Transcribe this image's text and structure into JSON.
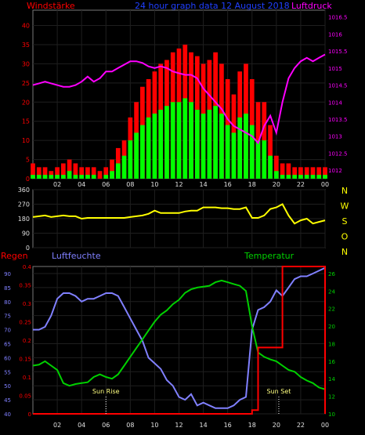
{
  "header": {
    "wind_label": "Windstärke",
    "title": "24 hour graph data  12 August 2018",
    "pressure_label": "Luftdruck"
  },
  "compass_label": "N W S O N",
  "bottom_labels": {
    "rain": "Regen",
    "humidity": "Luftfeuchte",
    "temperature": "Temperatur"
  },
  "colors": {
    "wind_gust": "#ff0000",
    "wind_avg": "#00ff00",
    "pressure": "#ff00ff",
    "direction": "#ffff00",
    "rain": "#ff0000",
    "humidity": "#8080ff",
    "temperature": "#00d000",
    "axis_left": "#ff0000",
    "axis_right": "#ff00ff",
    "grid": "#1f1f1f"
  },
  "chart_data": [
    {
      "type": "bar",
      "panel": "wind",
      "x": [
        0,
        0.5,
        1,
        1.5,
        2,
        2.5,
        3,
        3.5,
        4,
        4.5,
        5,
        5.5,
        6,
        6.5,
        7,
        7.5,
        8,
        8.5,
        9,
        9.5,
        10,
        10.5,
        11,
        11.5,
        12,
        12.5,
        13,
        13.5,
        14,
        14.5,
        15,
        15.5,
        16,
        16.5,
        17,
        17.5,
        18,
        18.5,
        19,
        19.5,
        20,
        20.5,
        21,
        21.5,
        22,
        22.5,
        23,
        23.5,
        24
      ],
      "xticklabels": [
        "02",
        "04",
        "06",
        "08",
        "10",
        "12",
        "14",
        "16",
        "18",
        "20",
        "22",
        "00"
      ],
      "yticks": [
        0,
        5,
        10,
        15,
        20,
        25,
        30,
        35,
        40
      ],
      "ylim": [
        0,
        44
      ],
      "series": [
        {
          "name": "Windstärke",
          "values": [
            4,
            3,
            3,
            2,
            3,
            4,
            5,
            4,
            3,
            3,
            3,
            2,
            3,
            5,
            8,
            10,
            16,
            20,
            24,
            26,
            28,
            30,
            31,
            33,
            34,
            35,
            33,
            32,
            30,
            31,
            33,
            30,
            26,
            22,
            28,
            30,
            26,
            20,
            20,
            14,
            6,
            4,
            4,
            3,
            3,
            3,
            3,
            3,
            3
          ]
        },
        {
          "values": [
            1,
            1,
            1,
            1,
            1,
            1,
            2,
            1,
            1,
            1,
            1,
            0,
            1,
            2,
            4,
            6,
            10,
            12,
            14,
            16,
            17,
            18,
            19,
            20,
            20,
            21,
            20,
            18,
            17,
            18,
            19,
            17,
            14,
            12,
            16,
            17,
            14,
            10,
            10,
            6,
            2,
            1,
            1,
            1,
            1,
            1,
            1,
            1,
            1
          ]
        },
        {
          "name": "Luftdruck",
          "values": [
            1014.5,
            1014.55,
            1014.6,
            1014.55,
            1014.5,
            1014.45,
            1014.45,
            1014.5,
            1014.6,
            1014.75,
            1014.6,
            1014.7,
            1014.9,
            1014.9,
            1015,
            1015.1,
            1015.2,
            1015.2,
            1015.15,
            1015.05,
            1015.0,
            1015.05,
            1015.0,
            1014.9,
            1014.85,
            1014.8,
            1014.8,
            1014.7,
            1014.4,
            1014.2,
            1014.0,
            1013.8,
            1013.5,
            1013.3,
            1013.2,
            1013.1,
            1013.0,
            1012.8,
            1013.3,
            1013.6,
            1013.1,
            1014.0,
            1014.7,
            1015.0,
            1015.2,
            1015.3,
            1015.2,
            1015.3,
            1015.4
          ]
        }
      ],
      "pressure_ticks": [
        1012,
        1012.5,
        1013,
        1013.5,
        1014,
        1014.5,
        1015,
        1015.5,
        1016,
        1016.5
      ],
      "pressure_ylim": [
        1011.75,
        1016.7
      ]
    },
    {
      "type": "line",
      "panel": "direction",
      "x": [
        0,
        0.5,
        1,
        1.5,
        2,
        2.5,
        3,
        3.5,
        4,
        4.5,
        5,
        5.5,
        6,
        6.5,
        7,
        7.5,
        8,
        8.5,
        9,
        9.5,
        10,
        10.5,
        11,
        11.5,
        12,
        12.5,
        13,
        13.5,
        14,
        14.5,
        15,
        15.5,
        16,
        16.5,
        17,
        17.5,
        18,
        18.5,
        19,
        19.5,
        20,
        20.5,
        21,
        21.5,
        22,
        22.5,
        23,
        23.5,
        24
      ],
      "yticks": [
        0,
        90,
        180,
        270,
        360
      ],
      "ylim": [
        0,
        360
      ],
      "series": [
        {
          "values": [
            190,
            195,
            200,
            190,
            195,
            200,
            195,
            195,
            180,
            185,
            185,
            185,
            185,
            185,
            185,
            185,
            190,
            195,
            200,
            210,
            230,
            215,
            215,
            215,
            215,
            225,
            230,
            230,
            250,
            250,
            250,
            245,
            245,
            240,
            240,
            250,
            185,
            185,
            200,
            240,
            250,
            270,
            200,
            150,
            170,
            180,
            150,
            160,
            170
          ]
        }
      ]
    },
    {
      "type": "line",
      "panel": "climate",
      "x": [
        0,
        0.5,
        1,
        1.5,
        2,
        2.5,
        3,
        3.5,
        4,
        4.5,
        5,
        5.5,
        6,
        6.5,
        7,
        7.5,
        8,
        8.5,
        9,
        9.5,
        10,
        10.5,
        11,
        11.5,
        12,
        12.5,
        13,
        13.5,
        14,
        14.5,
        15,
        15.5,
        16,
        16.5,
        17,
        17.5,
        18,
        18.5,
        19,
        19.5,
        20,
        20.5,
        21,
        21.5,
        22,
        22.5,
        23,
        23.5,
        24
      ],
      "humidity_ticks": [
        40,
        45,
        50,
        55,
        60,
        65,
        70,
        75,
        80,
        85,
        90
      ],
      "humidity_ylim": [
        40,
        92.5
      ],
      "rain_ticks": [
        0,
        0.05,
        0.1,
        0.15,
        0.2,
        0.25,
        0.3,
        0.35,
        0.4
      ],
      "rain_ylim": [
        0,
        0.4
      ],
      "temperature_ticks": [
        10,
        12,
        14,
        16,
        18,
        20,
        22,
        24,
        26
      ],
      "temperature_ylim": [
        10,
        26.8
      ],
      "series": [
        {
          "name": "Luftfeuchte",
          "values": [
            70,
            70,
            71,
            75,
            81,
            83,
            83,
            82,
            80,
            81,
            81,
            82,
            83,
            83,
            82,
            78,
            74,
            70,
            66,
            60,
            58,
            56,
            52,
            50,
            46,
            45,
            47,
            43,
            44,
            43,
            42,
            42,
            42,
            43,
            45,
            46,
            70,
            77,
            78,
            80,
            84,
            82,
            85,
            88,
            89,
            89,
            90,
            91,
            92
          ]
        },
        {
          "name": "Regen",
          "values": [
            0,
            0,
            0,
            0,
            0,
            0,
            0,
            0,
            0,
            0,
            0,
            0,
            0,
            0,
            0,
            0,
            0,
            0,
            0,
            0,
            0,
            0,
            0,
            0,
            0,
            0,
            0,
            0,
            0,
            0,
            0,
            0,
            0,
            0,
            0,
            0,
            0.01,
            0.18,
            0.18,
            0.18,
            0.18,
            0.4,
            0.4,
            0.4,
            0.4,
            0.4,
            0.4,
            0.4,
            0
          ]
        },
        {
          "name": "Temperatur",
          "values": [
            15.5,
            15.6,
            16.0,
            15.5,
            15.0,
            13.5,
            13.2,
            13.4,
            13.5,
            13.6,
            14.2,
            14.5,
            14.2,
            14.0,
            14.5,
            15.5,
            16.5,
            17.5,
            18.5,
            19.5,
            20.5,
            21.3,
            21.8,
            22.5,
            23.0,
            23.8,
            24.2,
            24.4,
            24.5,
            24.6,
            25.0,
            25.2,
            25.0,
            24.8,
            24.6,
            24.0,
            20.0,
            17.0,
            16.5,
            16.2,
            16.0,
            15.5,
            15.0,
            14.8,
            14.2,
            13.8,
            13.5,
            13.0,
            12.8
          ]
        }
      ],
      "annotations": [
        {
          "label": "Sun Rise",
          "x": 6.0
        },
        {
          "label": "Sun Set",
          "x": 20.2
        }
      ]
    }
  ]
}
